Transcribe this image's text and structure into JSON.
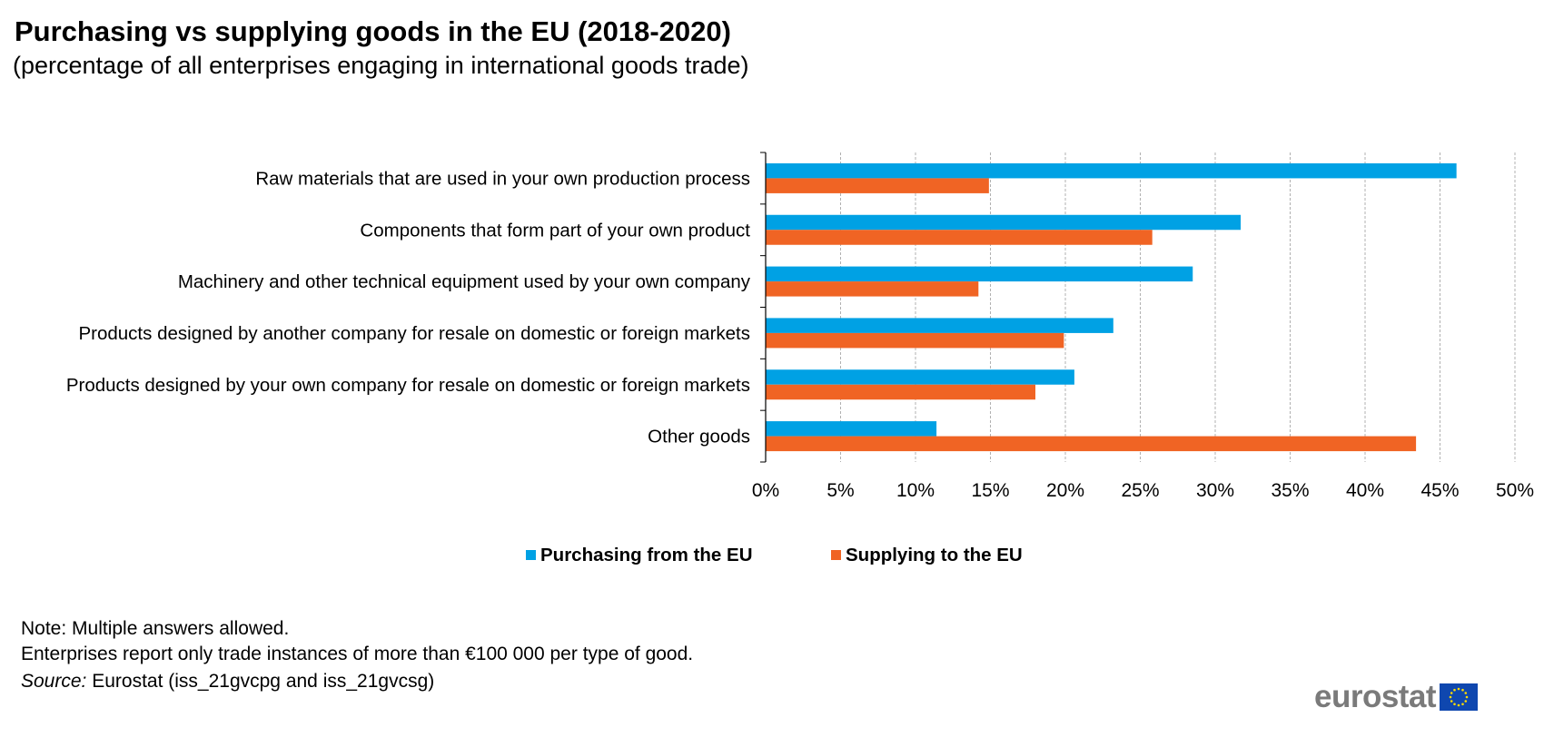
{
  "title": "Purchasing vs supplying goods in the EU (2018-2020)",
  "subtitle": "(percentage of all enterprises engaging in international goods trade)",
  "chart_data": {
    "type": "bar",
    "orientation": "horizontal",
    "categories": [
      "Raw materials that are used in your own production process",
      "Components that form part of your own product",
      "Machinery and other technical equipment used by your own company",
      "Products designed by another company for resale on domestic or foreign markets",
      "Products designed by your own company for resale on domestic or foreign markets",
      "Other goods"
    ],
    "series": [
      {
        "name": "Purchasing from the EU",
        "color": "#00A1E4",
        "values": [
          46.1,
          31.7,
          28.5,
          23.2,
          20.6,
          11.4
        ]
      },
      {
        "name": "Supplying to the EU",
        "color": "#F06424",
        "values": [
          14.9,
          25.8,
          14.2,
          19.9,
          18.0,
          43.4
        ]
      }
    ],
    "xlim": [
      0,
      50
    ],
    "xticks": [
      "0%",
      "5%",
      "10%",
      "15%",
      "20%",
      "25%",
      "30%",
      "35%",
      "40%",
      "45%",
      "50%"
    ],
    "grid": "vertical dashed",
    "legend_position": "bottom"
  },
  "notes": {
    "line1": "Note: Multiple answers allowed.",
    "line2": "Enterprises report only trade instances of more than €100 000 per type of good.",
    "source_label": "Source:",
    "source_text": " Eurostat (iss_21gvcpg and iss_21gvcsg)"
  },
  "logo": {
    "text": "eurostat"
  }
}
